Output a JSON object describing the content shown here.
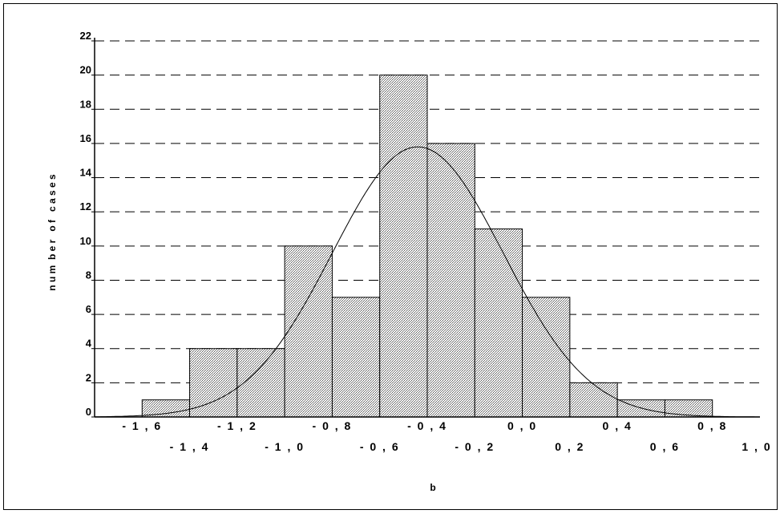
{
  "chart_data": {
    "type": "bar",
    "subtype": "histogram",
    "xlabel": "b",
    "ylabel": "n u m  b e r   o f   c a s e s",
    "ylim": [
      0,
      22
    ],
    "yticks": [
      0,
      2,
      4,
      6,
      8,
      10,
      12,
      14,
      16,
      18,
      20,
      22
    ],
    "xlim": [
      -1.8,
      1.0
    ],
    "xticks_row1": [
      "- 1 , 6",
      "- 1 , 2",
      "- 0 , 8",
      "- 0 , 4",
      "0 , 0",
      "0 , 4",
      "0 , 8"
    ],
    "xticks_row1_values": [
      -1.6,
      -1.2,
      -0.8,
      -0.4,
      0.0,
      0.4,
      0.8
    ],
    "xticks_row2": [
      "- 1 , 4",
      "- 1 , 0",
      "- 0 , 6",
      "- 0 , 2",
      "0 , 2",
      "0 , 6",
      "1 , 0"
    ],
    "xticks_row2_values": [
      -1.4,
      -1.0,
      -0.6,
      -0.2,
      0.2,
      0.6,
      1.0
    ],
    "bin_edges": [
      -1.6,
      -1.4,
      -1.2,
      -1.0,
      -0.8,
      -0.6,
      -0.4,
      -0.2,
      0.0,
      0.2,
      0.4,
      0.6,
      0.8
    ],
    "values": [
      1,
      4,
      4,
      10,
      7,
      20,
      16,
      11,
      7,
      2,
      1,
      1
    ],
    "normal_curve": {
      "mean": -0.44,
      "peak": 15.8,
      "sd": 0.36
    },
    "grid": "horizontal-dashed",
    "bar_fill": "#c8c8c8"
  }
}
